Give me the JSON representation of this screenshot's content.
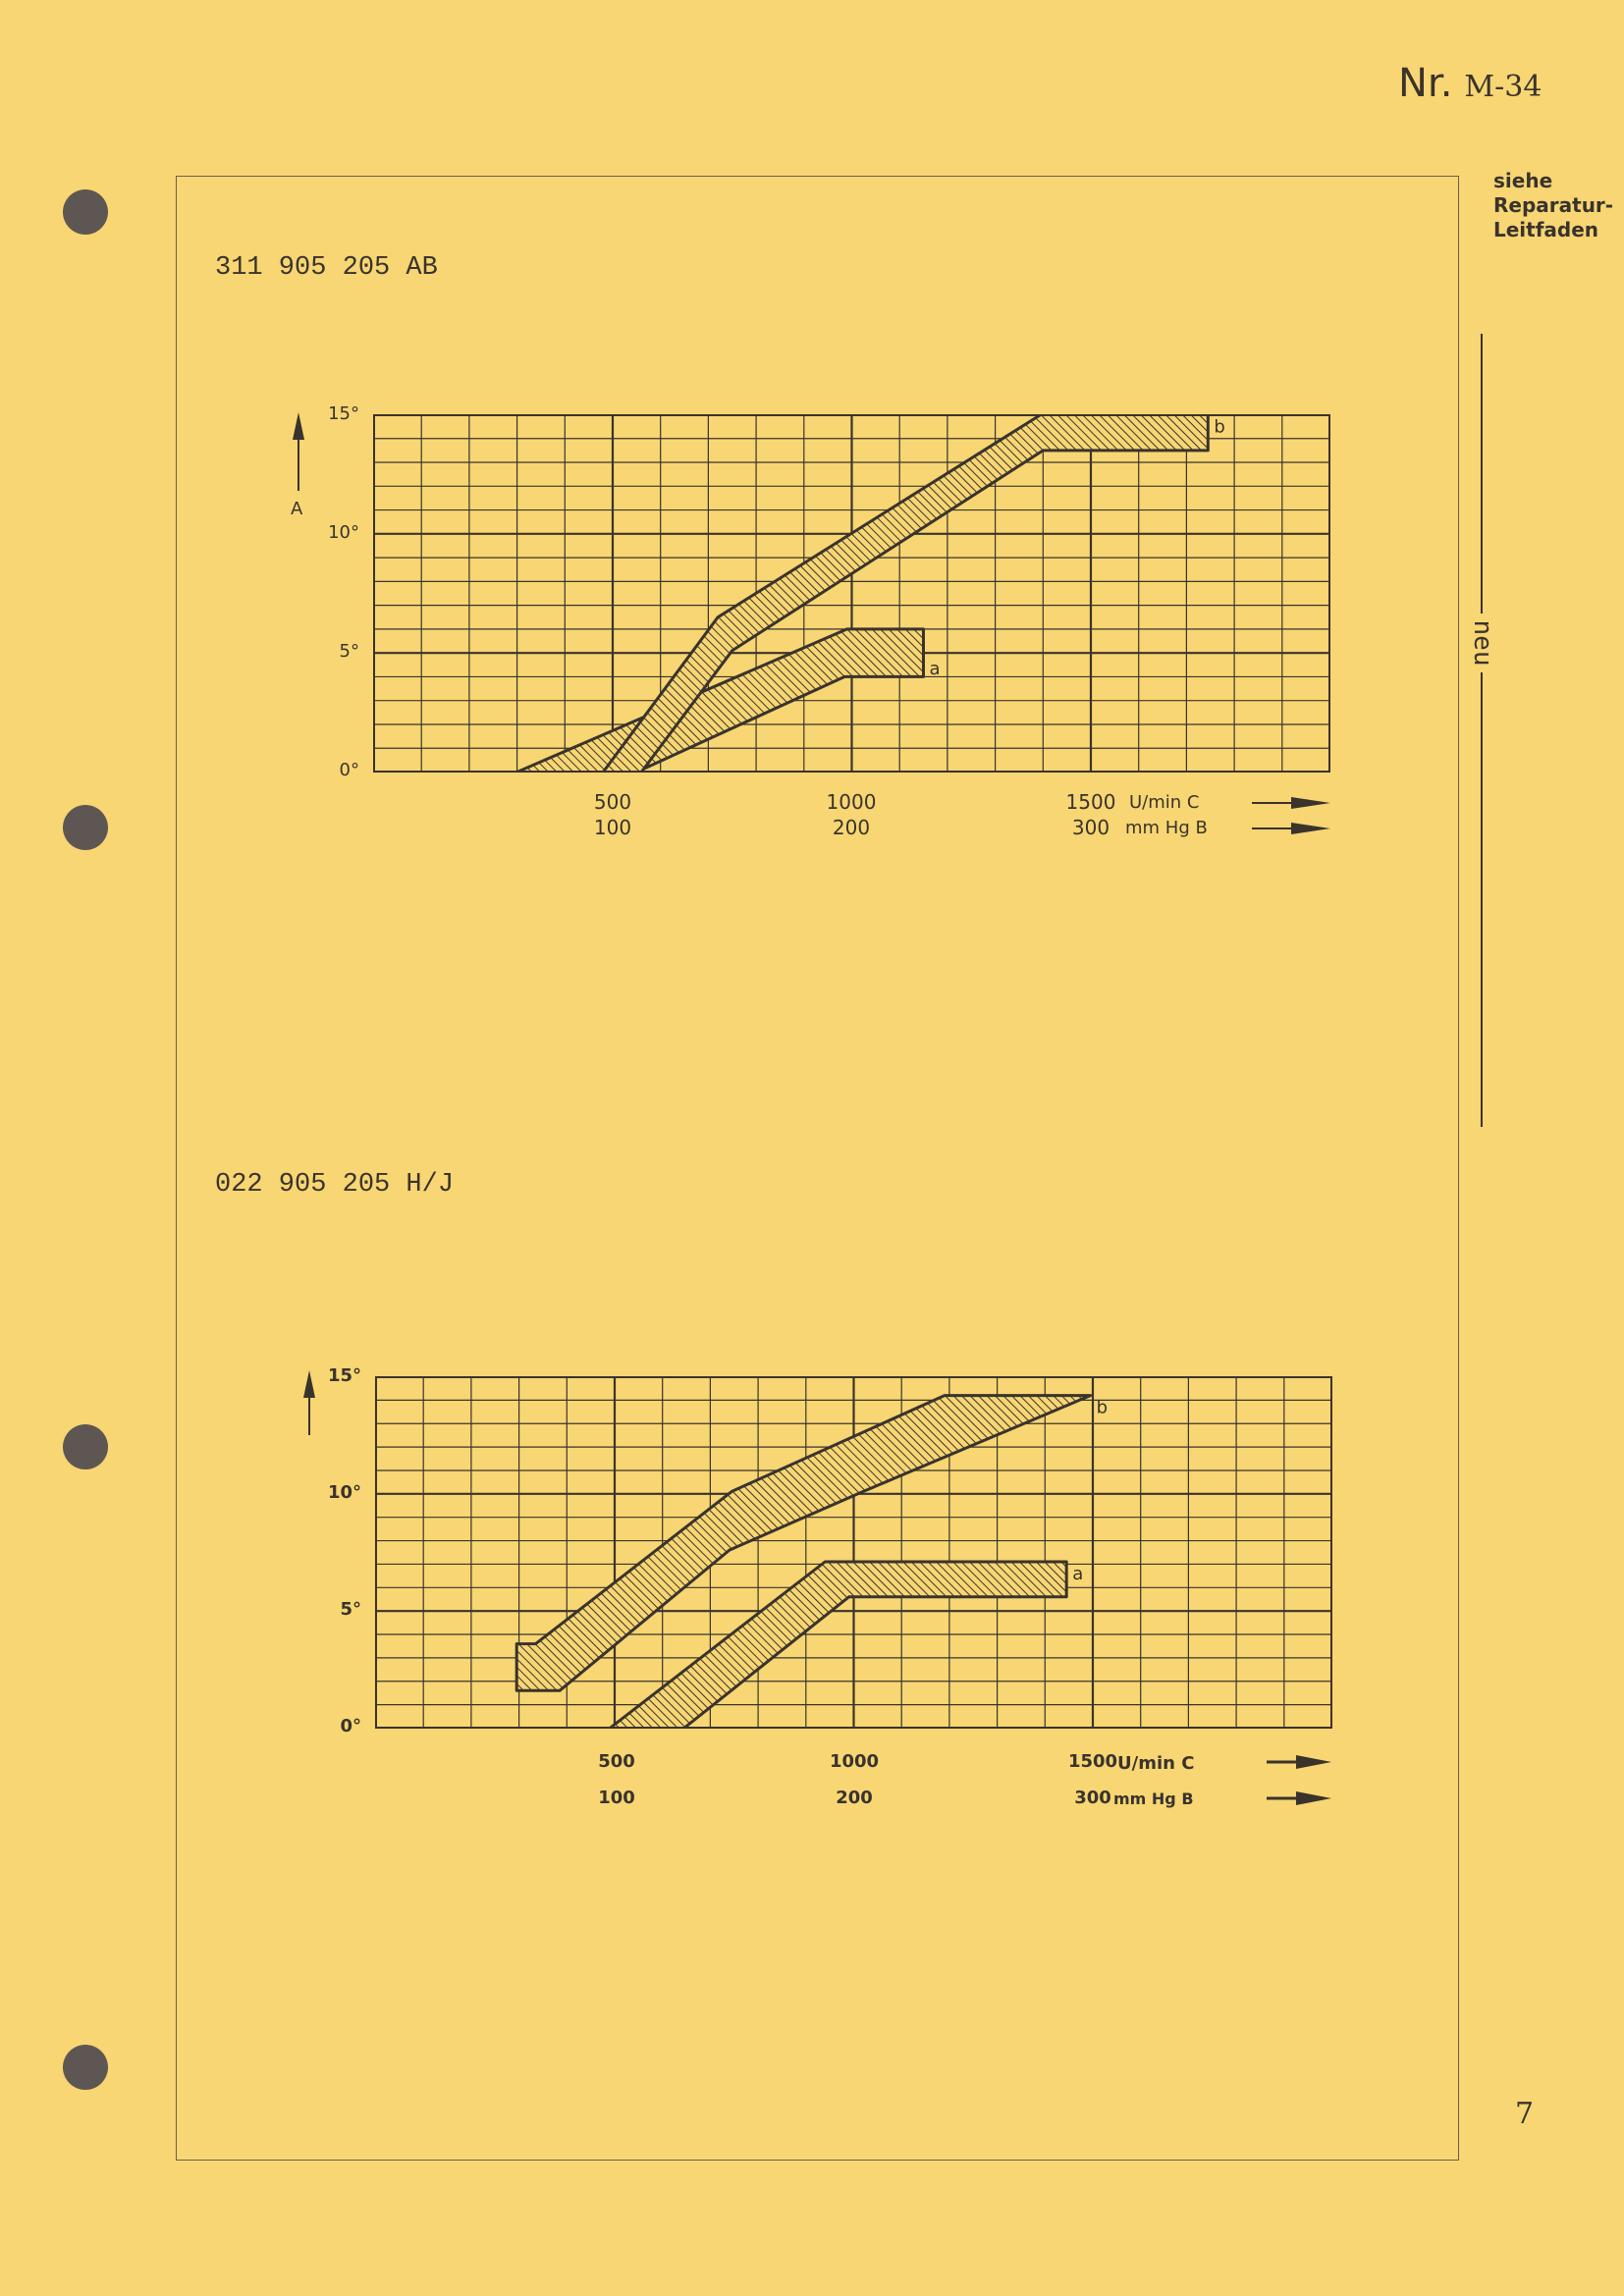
{
  "header": {
    "nr_label": "Nr.",
    "nr_code": "M-34"
  },
  "sidebar": {
    "reference": [
      "siehe",
      "Reparatur-",
      "Leitfaden"
    ],
    "tag": "neu"
  },
  "page_number": "7",
  "colors": {
    "paper": "#f7d673",
    "ink": "#3a332c",
    "hole": "#5e5652"
  },
  "chart_data": [
    {
      "type": "area",
      "title": "311 905 205 AB",
      "ylabel": "A",
      "xlim": [
        0,
        2000
      ],
      "ylim": [
        0,
        15
      ],
      "grid": true,
      "y_ticks": [
        "0°",
        "5°",
        "10°",
        "15°"
      ],
      "x_ticks": {
        "rpm": [
          "500",
          "1000",
          "1500"
        ],
        "vacuum": [
          "100",
          "200",
          "300"
        ]
      },
      "x_tick_values": [
        500,
        1000,
        1500
      ],
      "x_units": {
        "rpm": "U/min  C",
        "vacuum": "mm Hg  B"
      },
      "bands": [
        {
          "name": "a",
          "polygon": [
            [
              300,
              0
            ],
            [
              990,
              6
            ],
            [
              1150,
              6
            ],
            [
              1150,
              4
            ],
            [
              985,
              4
            ],
            [
              550,
              0
            ]
          ]
        },
        {
          "name": "b",
          "polygon": [
            [
              480,
              0
            ],
            [
              720,
              6.5
            ],
            [
              1395,
              15
            ],
            [
              1745,
              15
            ],
            [
              1745,
              13.5
            ],
            [
              1400,
              13.5
            ],
            [
              750,
              5.1
            ],
            [
              560,
              0
            ]
          ]
        }
      ]
    },
    {
      "type": "area",
      "title": "022 905 205 H/J",
      "ylabel": "",
      "xlim": [
        0,
        2000
      ],
      "ylim": [
        0,
        15
      ],
      "grid": true,
      "y_ticks": [
        "0°",
        "5°",
        "10°",
        "15°"
      ],
      "x_ticks": {
        "rpm": [
          "500",
          "1000",
          "1500"
        ],
        "vacuum": [
          "100",
          "200",
          "300"
        ]
      },
      "x_tick_values": [
        500,
        1000,
        1500
      ],
      "x_units": {
        "rpm": "U/min C",
        "vacuum": "mm Hg B"
      },
      "bands": [
        {
          "name": "a",
          "polygon": [
            [
              490,
              0
            ],
            [
              940,
              7.1
            ],
            [
              1445,
              7.1
            ],
            [
              1445,
              5.6
            ],
            [
              990,
              5.6
            ],
            [
              645,
              0
            ]
          ]
        },
        {
          "name": "b",
          "polygon": [
            [
              295,
              1.6
            ],
            [
              295,
              3.6
            ],
            [
              335,
              3.6
            ],
            [
              745,
              10.1
            ],
            [
              1190,
              14.2
            ],
            [
              1495,
              14.2
            ],
            [
              1020,
              10.1
            ],
            [
              740,
              7.6
            ],
            [
              385,
              1.6
            ]
          ]
        }
      ]
    }
  ]
}
